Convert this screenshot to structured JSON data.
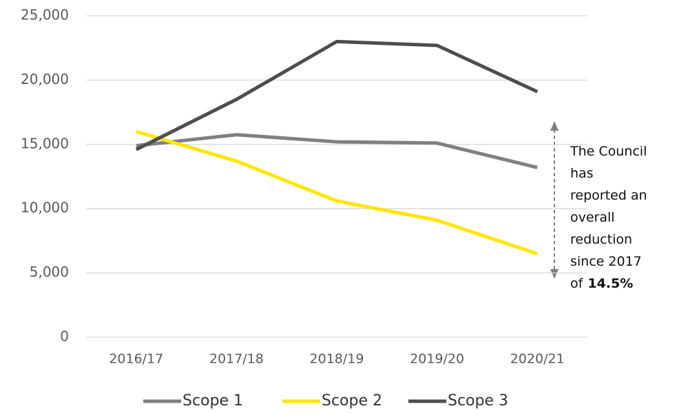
{
  "chart_data": {
    "type": "line",
    "categories": [
      "2016/17",
      "2017/18",
      "2018/19",
      "2019/20",
      "2020/21"
    ],
    "series": [
      {
        "name": "Scope 1",
        "color": "#7f7f84",
        "values": [
          14900,
          15750,
          15200,
          15100,
          13200
        ]
      },
      {
        "name": "Scope 2",
        "color": "#ffe600",
        "values": [
          16000,
          13700,
          10600,
          9100,
          6500
        ]
      },
      {
        "name": "Scope 3",
        "color": "#4d4d50",
        "values": [
          14600,
          18500,
          23000,
          22700,
          19100
        ]
      }
    ],
    "ylim": [
      0,
      25000
    ],
    "yticks": [
      0,
      {
        "value": 5000,
        "label": "5,000"
      },
      {
        "value": 10000,
        "label": "10,000"
      },
      {
        "value": 15000,
        "label": "15,000"
      },
      {
        "value": 20000,
        "label": "20,000"
      },
      {
        "value": 25000,
        "label": "25,000"
      }
    ],
    "grid": true,
    "legend": "bottom",
    "annotation": {
      "lines": [
        "The Council",
        "has",
        "reported an",
        "overall",
        "reduction",
        "since 2017",
        "of"
      ],
      "highlight": "14.5%"
    }
  }
}
